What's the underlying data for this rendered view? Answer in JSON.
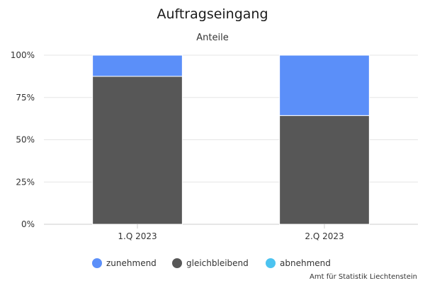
{
  "chart_data": {
    "type": "bar",
    "stacked": true,
    "percent": true,
    "title": "Auftragseingang",
    "subtitle": "Anteile",
    "categories": [
      "1.Q 2023",
      "2.Q 2023"
    ],
    "y_ticks": [
      "0%",
      "25%",
      "50%",
      "75%",
      "100%"
    ],
    "ylim": [
      0,
      100
    ],
    "grid": true,
    "legend_position": "bottom",
    "series": [
      {
        "name": "abnehmend",
        "color": "#4cc3f0",
        "values": [
          0,
          0
        ]
      },
      {
        "name": "gleichbleibend",
        "color": "#575757",
        "values": [
          87.5,
          64.3
        ]
      },
      {
        "name": "zunehmend",
        "color": "#5b8ff9",
        "values": [
          12.5,
          35.7
        ]
      }
    ],
    "legend_order": [
      "zunehmend",
      "gleichbleibend",
      "abnehmend"
    ]
  },
  "credit": "Amt für Statistik Liechtenstein"
}
